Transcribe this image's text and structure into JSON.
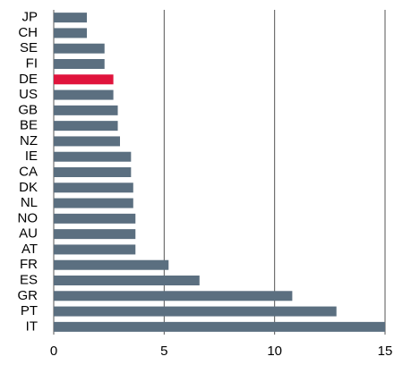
{
  "chart_data": {
    "type": "hbar",
    "categories": [
      "JP",
      "CH",
      "SE",
      "FI",
      "DE",
      "US",
      "GB",
      "BE",
      "NZ",
      "IE",
      "CA",
      "DK",
      "NL",
      "NO",
      "AU",
      "AT",
      "FR",
      "ES",
      "GR",
      "PT",
      "IT"
    ],
    "values": [
      1.5,
      1.5,
      2.3,
      2.3,
      2.7,
      2.7,
      2.9,
      2.9,
      3.0,
      3.5,
      3.5,
      3.6,
      3.6,
      3.7,
      3.7,
      3.7,
      5.2,
      6.6,
      10.8,
      12.8,
      15.0
    ],
    "colors": [
      "#5b6f80",
      "#5b6f80",
      "#5b6f80",
      "#5b6f80",
      "#e0143c",
      "#5b6f80",
      "#5b6f80",
      "#5b6f80",
      "#5b6f80",
      "#5b6f80",
      "#5b6f80",
      "#5b6f80",
      "#5b6f80",
      "#5b6f80",
      "#5b6f80",
      "#5b6f80",
      "#5b6f80",
      "#5b6f80",
      "#5b6f80",
      "#5b6f80",
      "#5b6f80"
    ],
    "xlim": [
      0,
      15
    ],
    "xticks": [
      0,
      5,
      10,
      15
    ],
    "grid": true
  }
}
